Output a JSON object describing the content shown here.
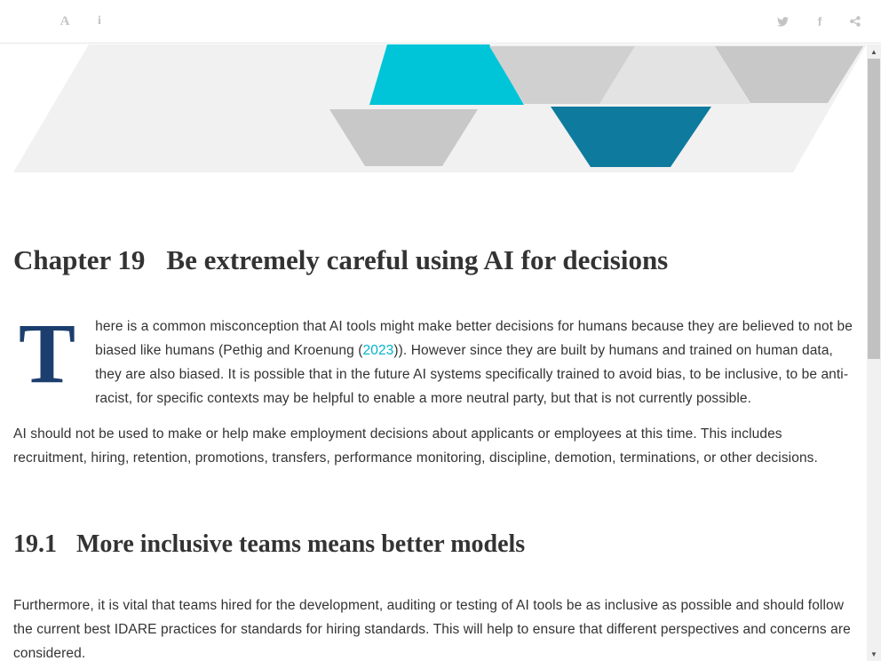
{
  "toolbar": {
    "font_icon": "A",
    "info_icon": "i",
    "facebook_icon": "f",
    "icons": [
      "font-settings-icon",
      "info-icon",
      "twitter-icon",
      "facebook-icon",
      "share-icon"
    ]
  },
  "chapter": {
    "number": "Chapter 19",
    "title": "Be extremely careful using AI for decisions"
  },
  "paragraph1": {
    "dropcap": "T",
    "text_before_cite": "here is a common misconception that AI tools might make better decisions for humans because they are believed to not be biased like humans (Pethig and Kroenung (",
    "cite": "2023",
    "text_after_cite": ")). However since they are built by humans and trained on human data, they are also biased. It is possible that in the future AI systems specifically trained to avoid bias, to be inclusive, to be anti-racist, for specific contexts may be helpful to enable a more neutral party, but that is not currently possible."
  },
  "paragraph2": "AI should not be used to make or help make employment decisions about applicants or employees at this time. This includes recruitment, hiring, retention, promotions, transfers, performance monitoring, discipline, demotion, terminations, or other decisions.",
  "section": {
    "number": "19.1",
    "title": "More inclusive teams means better models"
  },
  "paragraph3": "Furthermore, it is vital that teams hired for the development, auditing or testing of AI tools be as inclusive as possible and should follow the current best IDARE practices for standards for hiring standards. This will help to ensure that different perspectives and concerns are considered.",
  "colors": {
    "accent": "#00b4d0",
    "dropcap": "#1c3e6e",
    "banner_cyan": "#00c4d8",
    "banner_teal": "#0e7a9e",
    "banner_gray": "#c8c8c8",
    "banner_light": "#f1f1f1"
  }
}
